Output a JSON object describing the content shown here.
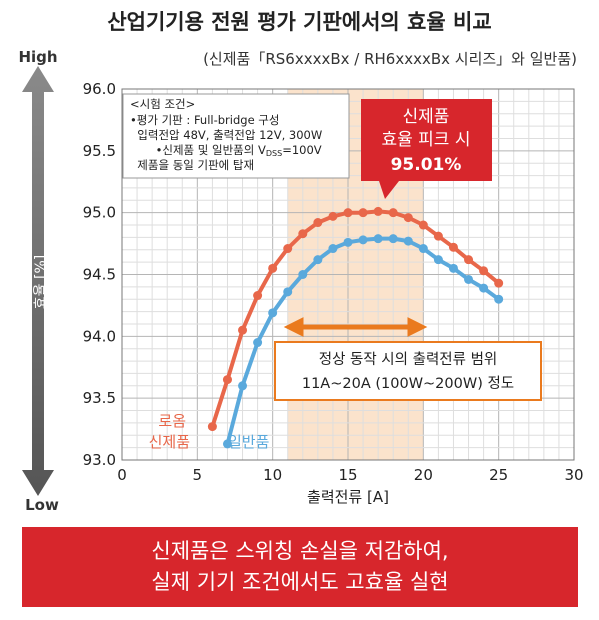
{
  "header": {
    "title": "산업기기용 전원 평가 기판에서의 효율 비교",
    "subtitle": "(신제품「RS6xxxxBx / RH6xxxxBx 시리즈」와 일반품)"
  },
  "axis_arrow": {
    "high": "High",
    "low": "Low"
  },
  "conditions_box": {
    "heading": "<시험 조건>",
    "lines": [
      "•평가 기판 : Full-bridge 구성",
      "  입력전압 48V, 출력전압 12V, 300W",
      "•신제품 및 일반품의 V",
      "  제품을 동일 기판에 탑재"
    ],
    "vdss_sub": "DSS",
    "vdss_suffix": "=100V"
  },
  "peak_callout": {
    "line1": "신제품",
    "line2": "효율 피크 시",
    "line3": "95.01%"
  },
  "range_box": {
    "line1": "정상 동작 시의 출력전류 범위",
    "line2": "11A~20A (100W~200W) 정도"
  },
  "series_labels": {
    "new_line1": "로옴",
    "new_line2": "신제품",
    "conventional": "일반품"
  },
  "banner": {
    "line1": "신제품은 스위칭 손실을 저감하여,",
    "line2": "실제 기기 조건에서도 고효율 실현"
  },
  "colors": {
    "new": "#e8674a",
    "conventional": "#5aa9dc",
    "highlight": "#fbe3cc",
    "accent": "#d7262c",
    "range_arrow": "#ea7a1e"
  },
  "chart_data": {
    "type": "line",
    "title": "산업기기용 전원 평가 기판에서의 효율 비교",
    "xlabel": "출력전류 [A]",
    "ylabel": "효율 [%]",
    "xlim": [
      0,
      30
    ],
    "ylim": [
      93.0,
      96.0
    ],
    "xticks": [
      0,
      5,
      10,
      15,
      20,
      25,
      30
    ],
    "yticks": [
      93.0,
      93.5,
      94.0,
      94.5,
      95.0,
      95.5,
      96.0
    ],
    "grid": true,
    "highlight_range": [
      11,
      20
    ],
    "series": [
      {
        "name": "로옴 신제품",
        "x": [
          6,
          7,
          8,
          9,
          10,
          11,
          12,
          13,
          14,
          15,
          16,
          17,
          18,
          19,
          20,
          21,
          22,
          23,
          24,
          25
        ],
        "y": [
          93.27,
          93.65,
          94.05,
          94.33,
          94.55,
          94.71,
          94.83,
          94.92,
          94.97,
          95.0,
          95.0,
          95.01,
          95.0,
          94.96,
          94.9,
          94.81,
          94.72,
          94.62,
          94.53,
          94.43
        ]
      },
      {
        "name": "일반품",
        "x": [
          7,
          8,
          9,
          10,
          11,
          12,
          13,
          14,
          15,
          16,
          17,
          18,
          19,
          20,
          21,
          22,
          23,
          24,
          25
        ],
        "y": [
          93.13,
          93.6,
          93.95,
          94.19,
          94.36,
          94.5,
          94.62,
          94.71,
          94.76,
          94.78,
          94.79,
          94.79,
          94.77,
          94.71,
          94.62,
          94.55,
          94.46,
          94.39,
          94.3
        ]
      }
    ]
  }
}
